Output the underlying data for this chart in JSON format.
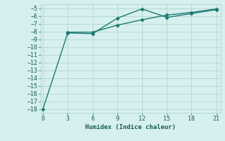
{
  "xlabel": "Humidex (Indice chaleur)",
  "ylabel": "",
  "background_color": "#d6f0ef",
  "grid_color": "#b5d8d5",
  "line_color": "#1a7a6e",
  "line1_x": [
    0,
    3,
    6,
    9,
    12,
    15,
    18,
    21
  ],
  "line1_y": [
    -18,
    -8.2,
    -8.3,
    -6.3,
    -5.1,
    -6.2,
    -5.7,
    -5.2
  ],
  "line2_x": [
    3,
    6,
    9,
    12,
    15,
    18,
    21
  ],
  "line2_y": [
    -8.1,
    -8.1,
    -7.2,
    -6.5,
    -5.9,
    -5.55,
    -5.1
  ],
  "xlim": [
    -0.3,
    21.5
  ],
  "ylim": [
    -18.5,
    -4.5
  ],
  "xticks": [
    0,
    3,
    6,
    9,
    12,
    15,
    18,
    21
  ],
  "yticks": [
    -18,
    -17,
    -16,
    -15,
    -14,
    -13,
    -12,
    -11,
    -10,
    -9,
    -8,
    -7,
    -6,
    -5
  ],
  "marker": "D",
  "marker_size": 2.5,
  "line_width": 1.0,
  "font_color": "#1a5a58",
  "font_family": "monospace",
  "axis_fontsize": 6.5,
  "tick_fontsize": 6.0
}
